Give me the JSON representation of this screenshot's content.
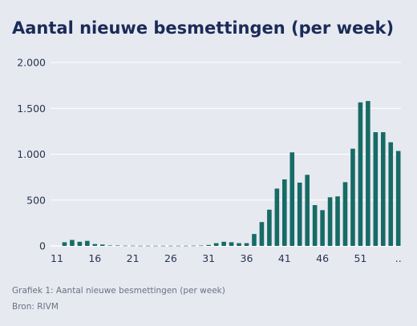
{
  "title": "Aantal nieuwe besmettingen (per week)",
  "caption": {
    "figure": "Grafiek 1: Aantal nieuwe besmettingen (per week)",
    "source": "Bron: RIVM"
  },
  "chart_data": {
    "type": "bar",
    "title": "Aantal nieuwe besmettingen (per week)",
    "xlabel": "",
    "ylabel": "",
    "ylim": [
      0,
      2000
    ],
    "yticks": [
      0,
      500,
      1000,
      1500,
      2000
    ],
    "ytick_labels": [
      "0",
      "500",
      "1.000",
      "1.500",
      "2.000"
    ],
    "xtick_labels": [
      "11",
      "16",
      "21",
      "26",
      "31",
      "36",
      "41",
      "46",
      "51",
      ".."
    ],
    "grid": "horizontal",
    "bar_color": "#176b66",
    "categories": [
      "11",
      "12",
      "13",
      "14",
      "15",
      "16",
      "17",
      "18",
      "19",
      "20",
      "21",
      "22",
      "23",
      "24",
      "25",
      "26",
      "27",
      "28",
      "29",
      "30",
      "31",
      "32",
      "33",
      "34",
      "35",
      "36",
      "37",
      "38",
      "39",
      "40",
      "41",
      "42",
      "43",
      "44",
      "45",
      "46",
      "47",
      "48",
      "49",
      "50",
      "51",
      "52",
      "53",
      "54",
      "55",
      "56"
    ],
    "values": [
      0,
      40,
      65,
      45,
      55,
      20,
      15,
      5,
      5,
      3,
      3,
      2,
      2,
      2,
      2,
      2,
      2,
      2,
      3,
      4,
      10,
      30,
      45,
      40,
      30,
      30,
      130,
      260,
      395,
      625,
      725,
      1020,
      690,
      775,
      445,
      390,
      530,
      540,
      695,
      1060,
      1565,
      1580,
      1240,
      1240,
      1130,
      1035
    ]
  }
}
